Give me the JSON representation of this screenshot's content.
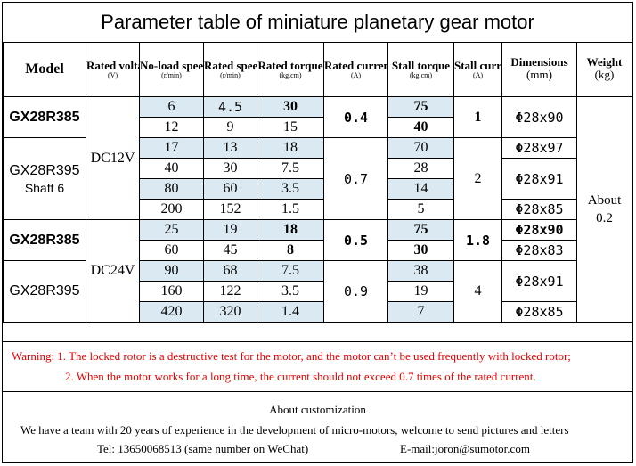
{
  "title": "Parameter table of miniature planetary gear motor",
  "headers": {
    "model": "Model",
    "rated_voltage": "Rated voltage",
    "rated_voltage_unit": "(V)",
    "noload_speed": "No-load speed",
    "noload_speed_unit": "(r/min)",
    "rated_speed": "Rated speed",
    "rated_speed_unit": "(r/min)",
    "rated_torque": "Rated torque",
    "rated_torque_unit": "(kg.cm)",
    "rated_current": "Rated current",
    "rated_current_unit": "(A)",
    "stall_torque": "Stall torque",
    "stall_torque_unit": "(kg.cm)",
    "stall_current": "Stall current",
    "stall_current_unit": "(A)",
    "dimensions": "Dimensions",
    "dimensions_unit": "(mm)",
    "weight": "Weight",
    "weight_unit": "(kg)"
  },
  "groups": {
    "g1_model": "GX28R385",
    "g2_model": "GX28R395",
    "g2_shaft": "Shaft 6",
    "g3_model": "GX28R385",
    "g4_model": "GX28R395",
    "voltage_12": "DC12V",
    "voltage_24": "DC24V",
    "g1_current": "0.4",
    "g2_current": "0.7",
    "g3_current": "0.5",
    "g4_current": "0.9",
    "g1_stall_current": "1",
    "g2_stall_current": "2",
    "g3_stall_current": "1.8",
    "g4_stall_current": "4",
    "weight": "About 0.2"
  },
  "rows": [
    {
      "noload": "6",
      "rated_speed": "4.5",
      "rated_torque": "30",
      "stall_torque": "75"
    },
    {
      "noload": "12",
      "rated_speed": "9",
      "rated_torque": "15",
      "stall_torque": "40"
    },
    {
      "noload": "17",
      "rated_speed": "13",
      "rated_torque": "18",
      "stall_torque": "70"
    },
    {
      "noload": "40",
      "rated_speed": "30",
      "rated_torque": "7.5",
      "stall_torque": "28"
    },
    {
      "noload": "80",
      "rated_speed": "60",
      "rated_torque": "3.5",
      "stall_torque": "14"
    },
    {
      "noload": "200",
      "rated_speed": "152",
      "rated_torque": "1.5",
      "stall_torque": "5"
    },
    {
      "noload": "25",
      "rated_speed": "19",
      "rated_torque": "18",
      "stall_torque": "75"
    },
    {
      "noload": "60",
      "rated_speed": "45",
      "rated_torque": "8",
      "stall_torque": "30"
    },
    {
      "noload": "90",
      "rated_speed": "68",
      "rated_torque": "7.5",
      "stall_torque": "38"
    },
    {
      "noload": "160",
      "rated_speed": "122",
      "rated_torque": "3.5",
      "stall_torque": "19"
    },
    {
      "noload": "420",
      "rated_speed": "320",
      "rated_torque": "1.4",
      "stall_torque": "7"
    }
  ],
  "dimensions": {
    "d1": "Φ28x90",
    "d2": "Φ28x97",
    "d3": "Φ28x91",
    "d4": "Φ28x85",
    "d5": "Φ28x90",
    "d6": "Φ28x83",
    "d7": "Φ28x91",
    "d8": "Φ28x85"
  },
  "warning": {
    "line1": "Warning: 1. The locked rotor is a destructive test for the motor, and the motor can’t be used frequently with locked rotor;",
    "line2": "2. When the motor works for a long time, the current should not exceed 0.7 times of the rated current."
  },
  "customization": {
    "heading": "About customization",
    "line": "We have a team with 20 years of experience in the development of micro-motors, welcome to send pictures and letters",
    "tel": "Tel: 13650068513 (same number on WeChat)",
    "email": "E-mail:joron@sumotor.com"
  },
  "colors": {
    "highlight": "#dbeaf2",
    "warning": "#e00000"
  }
}
